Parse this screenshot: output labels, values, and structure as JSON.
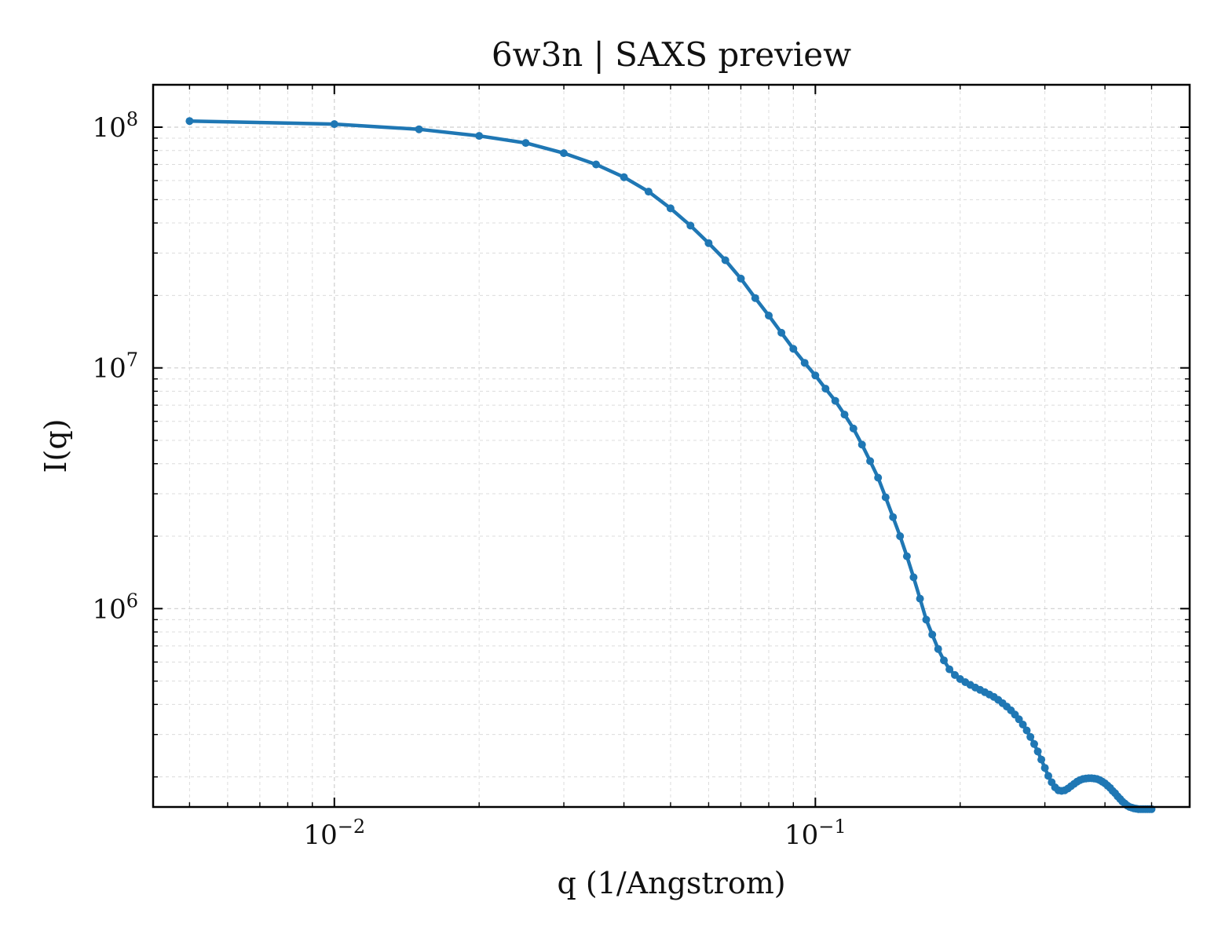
{
  "chart_data": {
    "type": "line",
    "title": "6w3n | SAXS preview",
    "xlabel": "q (1/Angstrom)",
    "ylabel": "I(q)",
    "xscale": "log",
    "yscale": "log",
    "xlim": [
      0.0042,
      0.6
    ],
    "ylim": [
      150000,
      150000000
    ],
    "x_ticks": [
      {
        "value": 0.01,
        "base": "10",
        "exp": "−2"
      },
      {
        "value": 0.1,
        "base": "10",
        "exp": "−1"
      }
    ],
    "y_ticks": [
      {
        "value": 1000000,
        "base": "10",
        "exp": "6"
      },
      {
        "value": 10000000,
        "base": "10",
        "exp": "7"
      },
      {
        "value": 100000000,
        "base": "10",
        "exp": "8"
      }
    ],
    "grid": true,
    "colors": {
      "series": "#1f77b4"
    },
    "series": [
      {
        "x": [
          0.005,
          0.01,
          0.015,
          0.02,
          0.025,
          0.03,
          0.035,
          0.04,
          0.045,
          0.05,
          0.055,
          0.06,
          0.065,
          0.07,
          0.075,
          0.08,
          0.085,
          0.09,
          0.095,
          0.1,
          0.105,
          0.11,
          0.115,
          0.12,
          0.125,
          0.13,
          0.135,
          0.14,
          0.145,
          0.15,
          0.155,
          0.16,
          0.165,
          0.17,
          0.175,
          0.18,
          0.185,
          0.19,
          0.195,
          0.2,
          0.205,
          0.21,
          0.215,
          0.22,
          0.225,
          0.23,
          0.235,
          0.24,
          0.245,
          0.25,
          0.255,
          0.26,
          0.265,
          0.27,
          0.275,
          0.28,
          0.285,
          0.29,
          0.295,
          0.3,
          0.305,
          0.31,
          0.315,
          0.32,
          0.325,
          0.33,
          0.335,
          0.34,
          0.345,
          0.35,
          0.355,
          0.36,
          0.365,
          0.37,
          0.375,
          0.38,
          0.385,
          0.39,
          0.395,
          0.4,
          0.405,
          0.41,
          0.415,
          0.42,
          0.425,
          0.43,
          0.435,
          0.44,
          0.445,
          0.45,
          0.455,
          0.46,
          0.465,
          0.47,
          0.475,
          0.48,
          0.485,
          0.49,
          0.495,
          0.5
        ],
        "y": [
          106000000,
          103000000,
          98000000,
          92000000,
          86000000,
          78000000,
          70000000,
          62000000,
          54000000,
          46000000,
          39000000,
          33000000,
          28000000,
          23500000,
          19500000,
          16500000,
          14000000,
          12000000,
          10500000,
          9300000,
          8200000,
          7300000,
          6400000,
          5600000,
          4800000,
          4100000,
          3500000,
          2900000,
          2400000,
          2000000,
          1650000,
          1350000,
          1100000,
          900000,
          780000,
          680000,
          610000,
          560000,
          530000,
          510000,
          495000,
          482000,
          470000,
          460000,
          450000,
          440000,
          430000,
          418000,
          405000,
          392000,
          378000,
          363000,
          347000,
          330000,
          312000,
          293000,
          274000,
          255000,
          236000,
          218000,
          202000,
          190000,
          181000,
          176000,
          175000,
          176000,
          179000,
          183000,
          187000,
          191000,
          194000,
          196000,
          197000,
          197500,
          197500,
          197000,
          196000,
          194000,
          191000,
          188000,
          184000,
          180000,
          175000,
          171000,
          166000,
          162000,
          158000,
          155000,
          152000,
          150000,
          149000,
          148000,
          147500,
          147000,
          147000,
          147000,
          147000,
          147000,
          147000,
          147000
        ]
      }
    ]
  }
}
